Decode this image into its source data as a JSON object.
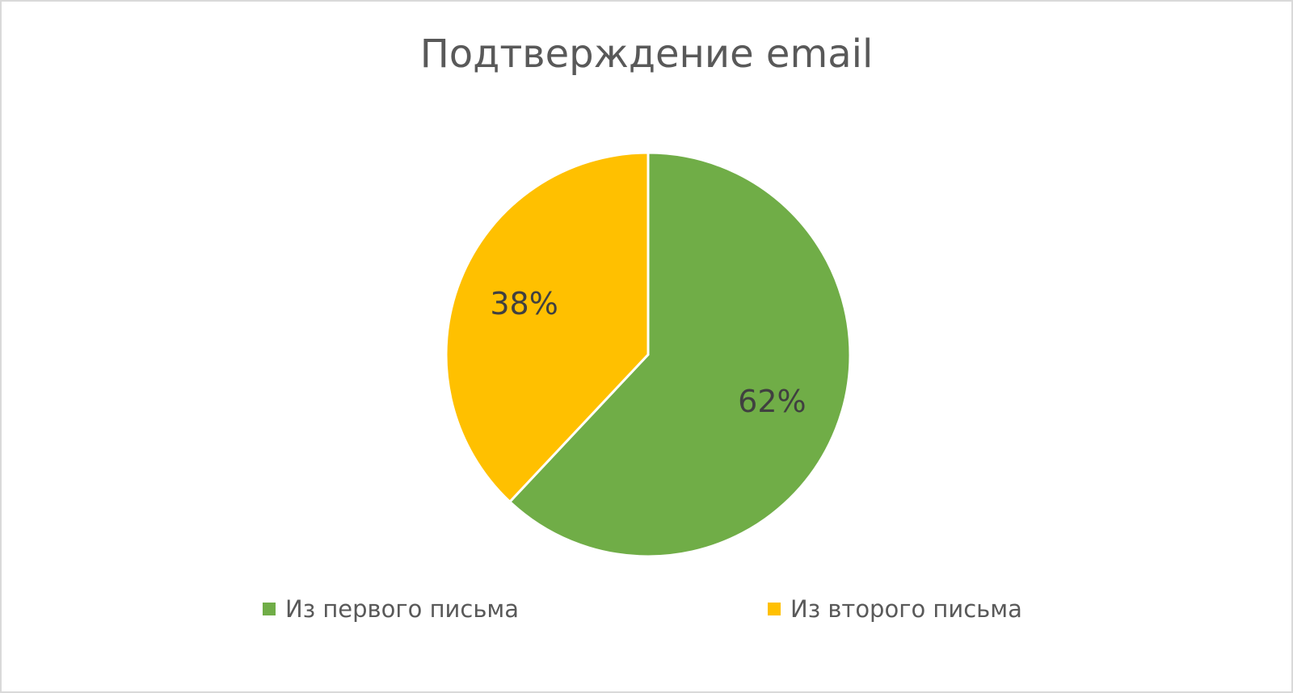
{
  "chart_data": {
    "type": "pie",
    "title": "Подтверждение email",
    "categories": [
      "Из первого письма",
      "Из второго письма"
    ],
    "values": [
      62,
      38
    ],
    "value_labels": [
      "62%",
      "38%"
    ],
    "colors": [
      "#70ad47",
      "#ffc000"
    ],
    "legend": "bottom"
  }
}
